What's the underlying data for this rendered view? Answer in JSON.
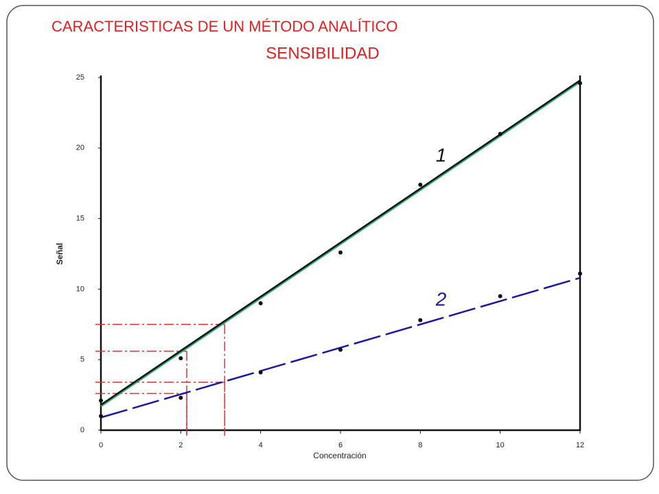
{
  "chart_data": {
    "type": "scatter",
    "title": "CARACTERISTICAS DE UN MÉTODO ANALÍTICO",
    "subtitle": "SENSIBILIDAD",
    "x_label": "Concentración",
    "y_label": "Señal",
    "x": [
      0,
      2,
      4,
      6,
      8,
      10,
      12
    ],
    "series": [
      {
        "name": "1",
        "color": "#111111",
        "dashed": false,
        "values": [
          2.1,
          5.1,
          9.0,
          12.6,
          17.4,
          21.0,
          24.6
        ],
        "fit_x": [
          0,
          12
        ],
        "fit_y": [
          1.8,
          24.8
        ]
      },
      {
        "name": "2",
        "color": "#1a1a9a",
        "dashed": true,
        "values": [
          1.0,
          2.3,
          4.1,
          5.7,
          7.8,
          9.5,
          11.1
        ],
        "fit_x": [
          0,
          12
        ],
        "fit_y": [
          0.9,
          10.8
        ]
      }
    ],
    "guides": {
      "color": "#e03030",
      "x": [
        2.15,
        3.1,
        2.15,
        3.1
      ],
      "y": [
        5.6,
        7.5,
        2.6,
        3.4
      ]
    },
    "xlim": [
      0,
      12
    ],
    "xticks": [
      0,
      2,
      4,
      6,
      8,
      10,
      12
    ],
    "ylim": [
      0,
      25
    ],
    "yticks": [
      0,
      5,
      10,
      15,
      20,
      25
    ],
    "grid": false
  }
}
